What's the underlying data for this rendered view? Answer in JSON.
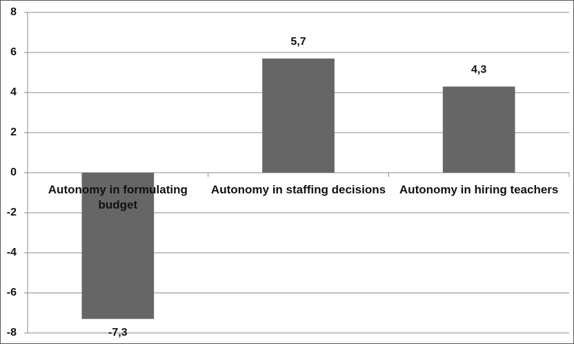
{
  "chart_data": {
    "type": "bar",
    "categories": [
      "Autonomy in formulating budget",
      "Autonomy in staffing decisions",
      "Autonomy in hiring teachers"
    ],
    "values": [
      -7.3,
      5.7,
      4.3
    ],
    "value_labels": [
      "-7,3",
      "5,7",
      "4,3"
    ],
    "color": "#666666",
    "ylim": [
      -8,
      8
    ],
    "yticks": [
      -8,
      -6,
      -4,
      -2,
      0,
      2,
      4,
      6,
      8
    ],
    "grid": true
  }
}
